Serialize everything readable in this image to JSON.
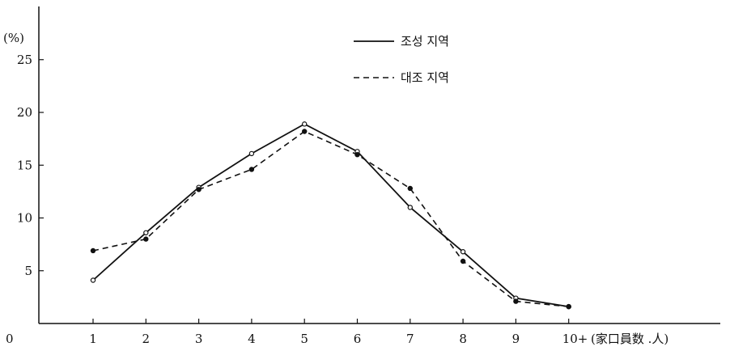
{
  "chart_data": {
    "type": "line",
    "x": [
      "1",
      "2",
      "3",
      "4",
      "5",
      "6",
      "7",
      "8",
      "9",
      "10+"
    ],
    "series": [
      {
        "name": "조성 지역",
        "style": "solid",
        "values": [
          4.1,
          8.6,
          12.9,
          16.1,
          18.9,
          16.3,
          11.0,
          6.8,
          2.4,
          1.6
        ]
      },
      {
        "name": "대조 지역",
        "style": "dashed",
        "values": [
          6.9,
          8.0,
          12.7,
          14.6,
          18.2,
          16.0,
          12.8,
          5.9,
          2.1,
          1.6
        ]
      }
    ],
    "yticks": [
      5,
      10,
      15,
      20,
      25
    ],
    "ylim": [
      0,
      27
    ],
    "ylabel": "(%)",
    "origin_label": "0",
    "xlabel": "(家口員数  .人)",
    "grid": false,
    "legend_position": "top-center"
  },
  "colors": {
    "ink": "#111111"
  }
}
